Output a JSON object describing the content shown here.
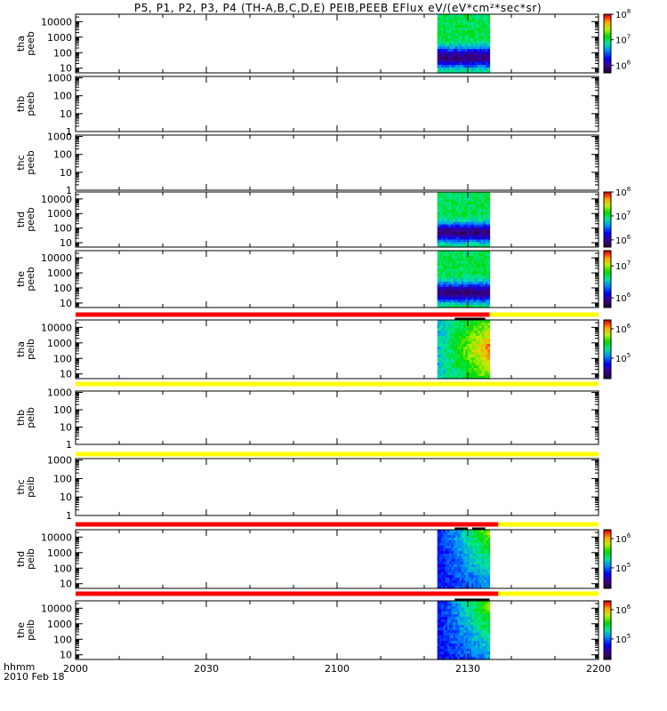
{
  "title": "P5, P1, P2, P3, P4 (TH-A,B,C,D,E) PEIB,PEEB EFlux eV/(eV*cm²*sec*sr)",
  "footer": {
    "hhmm": "hhmm",
    "date": "2010 Feb 18"
  },
  "x_axis": {
    "ticks": [
      "2000",
      "2030",
      "2100",
      "2130",
      "2200"
    ]
  },
  "colors": {
    "bar_red": "#ff0000",
    "bar_yellow": "#ffff00",
    "bar_black": "#000000"
  },
  "chart_data": {
    "type": "heatmap",
    "time_range": [
      "2000",
      "2200"
    ],
    "panels": [
      {
        "probe": "tha",
        "product": "peeb",
        "ylabel": "tha\npeeb",
        "yticks": [
          "10",
          "100",
          "1000",
          "10000"
        ],
        "ylim": [
          5,
          30000
        ],
        "data_range": [
          "2123",
          "2135"
        ],
        "colorbar": {
          "ticks": [
            "10^6",
            "10^7",
            "10^8"
          ],
          "range": [
            500000,
            100000000
          ]
        }
      },
      {
        "probe": "thb",
        "product": "peeb",
        "ylabel": "thb\npeeb",
        "yticks": [
          "1",
          "10",
          "100",
          "1000"
        ],
        "ylim": [
          1,
          1200
        ],
        "data_range": null,
        "colorbar": null
      },
      {
        "probe": "thc",
        "product": "peeb",
        "ylabel": "thc\npeeb",
        "yticks": [
          "1",
          "10",
          "100",
          "1000"
        ],
        "ylim": [
          1,
          1200
        ],
        "data_range": null,
        "colorbar": null
      },
      {
        "probe": "thd",
        "product": "peeb",
        "ylabel": "thd\npeeb",
        "yticks": [
          "10",
          "100",
          "1000",
          "10000"
        ],
        "ylim": [
          5,
          30000
        ],
        "data_range": [
          "2123",
          "2135"
        ],
        "colorbar": {
          "ticks": [
            "10^6",
            "10^7",
            "10^8"
          ],
          "range": [
            500000,
            100000000
          ]
        }
      },
      {
        "probe": "the",
        "product": "peeb",
        "ylabel": "the\npeeb",
        "yticks": [
          "10",
          "100",
          "1000",
          "10000"
        ],
        "ylim": [
          5,
          30000
        ],
        "data_range": [
          "2123",
          "2135"
        ],
        "colorbar": {
          "ticks": [
            "10^6",
            "10^7"
          ],
          "range": [
            500000,
            30000000
          ]
        }
      },
      {
        "probe": "tha",
        "product": "peib",
        "ylabel": "tha\npeib",
        "yticks": [
          "10",
          "100",
          "1000",
          "10000"
        ],
        "ylim": [
          5,
          30000
        ],
        "data_range": [
          "2123",
          "2135"
        ],
        "colorbar": {
          "ticks": [
            "10^5",
            "10^6"
          ],
          "range": [
            20000,
            2000000
          ]
        }
      },
      {
        "probe": "thb",
        "product": "peib",
        "ylabel": "thb\npeib",
        "yticks": [
          "1",
          "10",
          "100",
          "1000"
        ],
        "ylim": [
          1,
          1200
        ],
        "data_range": null,
        "colorbar": null
      },
      {
        "probe": "thc",
        "product": "peib",
        "ylabel": "thc\npeib",
        "yticks": [
          "1",
          "10",
          "100",
          "1000"
        ],
        "ylim": [
          1,
          1200
        ],
        "data_range": null,
        "colorbar": null
      },
      {
        "probe": "thd",
        "product": "peib",
        "ylabel": "thd\npeib",
        "yticks": [
          "10",
          "100",
          "1000",
          "10000"
        ],
        "ylim": [
          5,
          30000
        ],
        "data_range": [
          "2123",
          "2135"
        ],
        "colorbar": {
          "ticks": [
            "10^5",
            "10^6"
          ],
          "range": [
            20000,
            2000000
          ]
        }
      },
      {
        "probe": "the",
        "product": "peib",
        "ylabel": "the\npeib",
        "yticks": [
          "10",
          "100",
          "1000",
          "10000"
        ],
        "ylim": [
          5,
          30000
        ],
        "data_range": [
          "2123",
          "2135"
        ],
        "colorbar": {
          "ticks": [
            "10^5",
            "10^6"
          ],
          "range": [
            20000,
            2000000
          ]
        }
      }
    ],
    "mode_bars": [
      {
        "after_panel": 4,
        "segments": [
          {
            "color": "red",
            "from": "2000",
            "to": "2135"
          },
          {
            "color": "yellow",
            "from": "2135",
            "to": "2200"
          }
        ]
      },
      {
        "after_panel": 5,
        "segments": [
          {
            "color": "yellow",
            "from": "2000",
            "to": "2200"
          }
        ]
      },
      {
        "after_panel": 6,
        "segments": [
          {
            "color": "yellow",
            "from": "2000",
            "to": "2200"
          }
        ]
      },
      {
        "after_panel": 7,
        "segments": [
          {
            "color": "red",
            "from": "2000",
            "to": "2137"
          },
          {
            "color": "yellow",
            "from": "2137",
            "to": "2200"
          }
        ]
      },
      {
        "after_panel": 8,
        "segments": [
          {
            "color": "red",
            "from": "2000",
            "to": "2137"
          },
          {
            "color": "yellow",
            "from": "2137",
            "to": "2200"
          }
        ]
      }
    ]
  }
}
